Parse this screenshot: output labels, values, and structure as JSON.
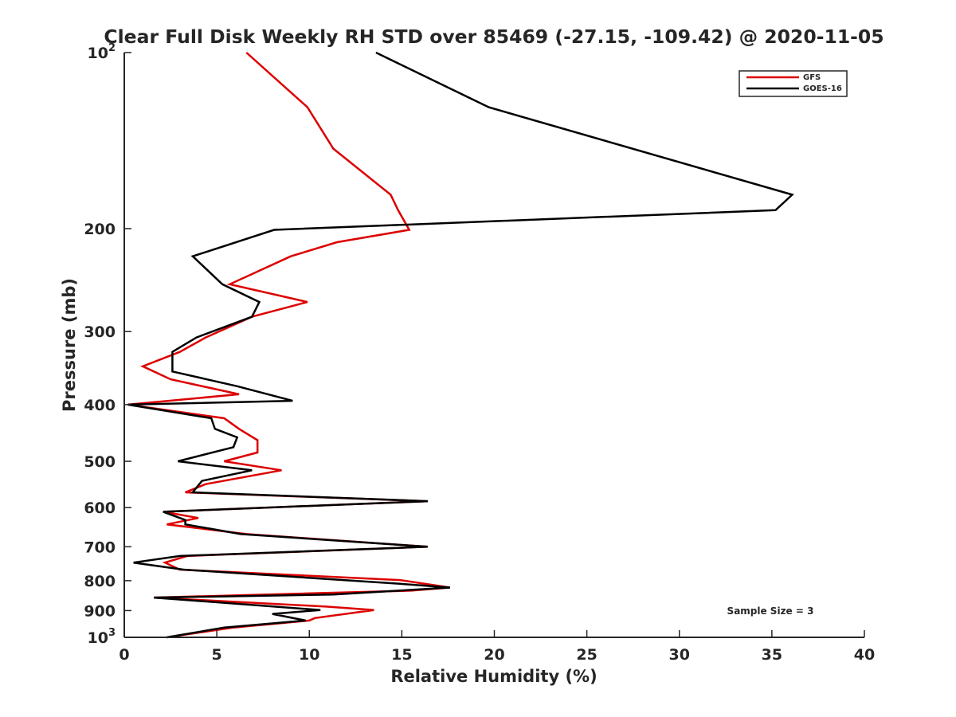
{
  "chart_data": {
    "type": "line",
    "title": "Clear Full Disk Weekly RH STD over 85469 (-27.15, -109.42) @ 2020-11-05",
    "xlabel": "Relative Humidity (%)",
    "ylabel": "Pressure (mb)",
    "xlim": [
      0,
      40
    ],
    "ylim": [
      100,
      1000
    ],
    "y_scale": "log",
    "y_reversed": true,
    "grid": false,
    "legend_position": "top-right",
    "x_ticks": [
      "0",
      "5",
      "10",
      "15",
      "20",
      "25",
      "30",
      "35",
      "40"
    ],
    "y_ticks": [
      {
        "value": 100,
        "base": "10",
        "exp": "2"
      },
      {
        "value": 200,
        "label": "200"
      },
      {
        "value": 300,
        "label": "300"
      },
      {
        "value": 400,
        "label": "400"
      },
      {
        "value": 500,
        "label": "500"
      },
      {
        "value": 600,
        "label": "600"
      },
      {
        "value": 700,
        "label": "700"
      },
      {
        "value": 800,
        "label": "800"
      },
      {
        "value": 900,
        "label": "900"
      },
      {
        "value": 1000,
        "base": "10",
        "exp": "3"
      }
    ],
    "annotation": "Sample Size = 3",
    "series": [
      {
        "name": "GFS",
        "color": "#dd0000",
        "points": [
          [
            6.6,
            100
          ],
          [
            9.9,
            124
          ],
          [
            11.3,
            146
          ],
          [
            14.4,
            175
          ],
          [
            14.8,
            186
          ],
          [
            15.4,
            201
          ],
          [
            11.5,
            211
          ],
          [
            9.0,
            223
          ],
          [
            5.7,
            249
          ],
          [
            9.9,
            267
          ],
          [
            6.9,
            283
          ],
          [
            4.4,
            307
          ],
          [
            3.0,
            325
          ],
          [
            1.0,
            344
          ],
          [
            2.5,
            362
          ],
          [
            6.2,
            384
          ],
          [
            0.2,
            400
          ],
          [
            5.4,
            422
          ],
          [
            6.2,
            440
          ],
          [
            7.2,
            460
          ],
          [
            7.2,
            483
          ],
          [
            5.4,
            500
          ],
          [
            8.5,
            518
          ],
          [
            4.4,
            547
          ],
          [
            3.3,
            565
          ],
          [
            16.4,
            585
          ],
          [
            2.1,
            610
          ],
          [
            4.0,
            625
          ],
          [
            2.3,
            641
          ],
          [
            6.6,
            666
          ],
          [
            16.4,
            700
          ],
          [
            3.4,
            726
          ],
          [
            2.2,
            745
          ],
          [
            3.0,
            766
          ],
          [
            14.9,
            798
          ],
          [
            17.6,
            822
          ],
          [
            15.5,
            832
          ],
          [
            1.6,
            855
          ],
          [
            10.9,
            886
          ],
          [
            13.5,
            898
          ],
          [
            10.3,
            927
          ],
          [
            10.0,
            936
          ],
          [
            5.9,
            962
          ],
          [
            2.3,
            1000
          ]
        ]
      },
      {
        "name": "GOES-16",
        "color": "#000000",
        "points": [
          [
            13.6,
            100
          ],
          [
            19.7,
            124
          ],
          [
            36.1,
            175
          ],
          [
            35.2,
            186
          ],
          [
            8.1,
            201
          ],
          [
            3.7,
            223
          ],
          [
            5.3,
            249
          ],
          [
            7.3,
            267
          ],
          [
            6.9,
            283
          ],
          [
            3.9,
            307
          ],
          [
            2.6,
            325
          ],
          [
            2.6,
            351
          ],
          [
            6.1,
            372
          ],
          [
            9.1,
            394
          ],
          [
            0.2,
            400
          ],
          [
            4.7,
            422
          ],
          [
            4.9,
            440
          ],
          [
            6.1,
            455
          ],
          [
            5.9,
            473
          ],
          [
            2.9,
            500
          ],
          [
            6.9,
            518
          ],
          [
            4.2,
            540
          ],
          [
            3.7,
            565
          ],
          [
            16.4,
            585
          ],
          [
            2.1,
            610
          ],
          [
            3.3,
            630
          ],
          [
            3.3,
            641
          ],
          [
            6.3,
            666
          ],
          [
            16.4,
            700
          ],
          [
            3.0,
            726
          ],
          [
            0.5,
            745
          ],
          [
            3.2,
            766
          ],
          [
            14.9,
            810
          ],
          [
            17.6,
            822
          ],
          [
            11.3,
            845
          ],
          [
            1.6,
            855
          ],
          [
            10.6,
            898
          ],
          [
            8.0,
            912
          ],
          [
            9.8,
            936
          ],
          [
            5.4,
            962
          ],
          [
            2.3,
            1000
          ]
        ]
      }
    ]
  }
}
